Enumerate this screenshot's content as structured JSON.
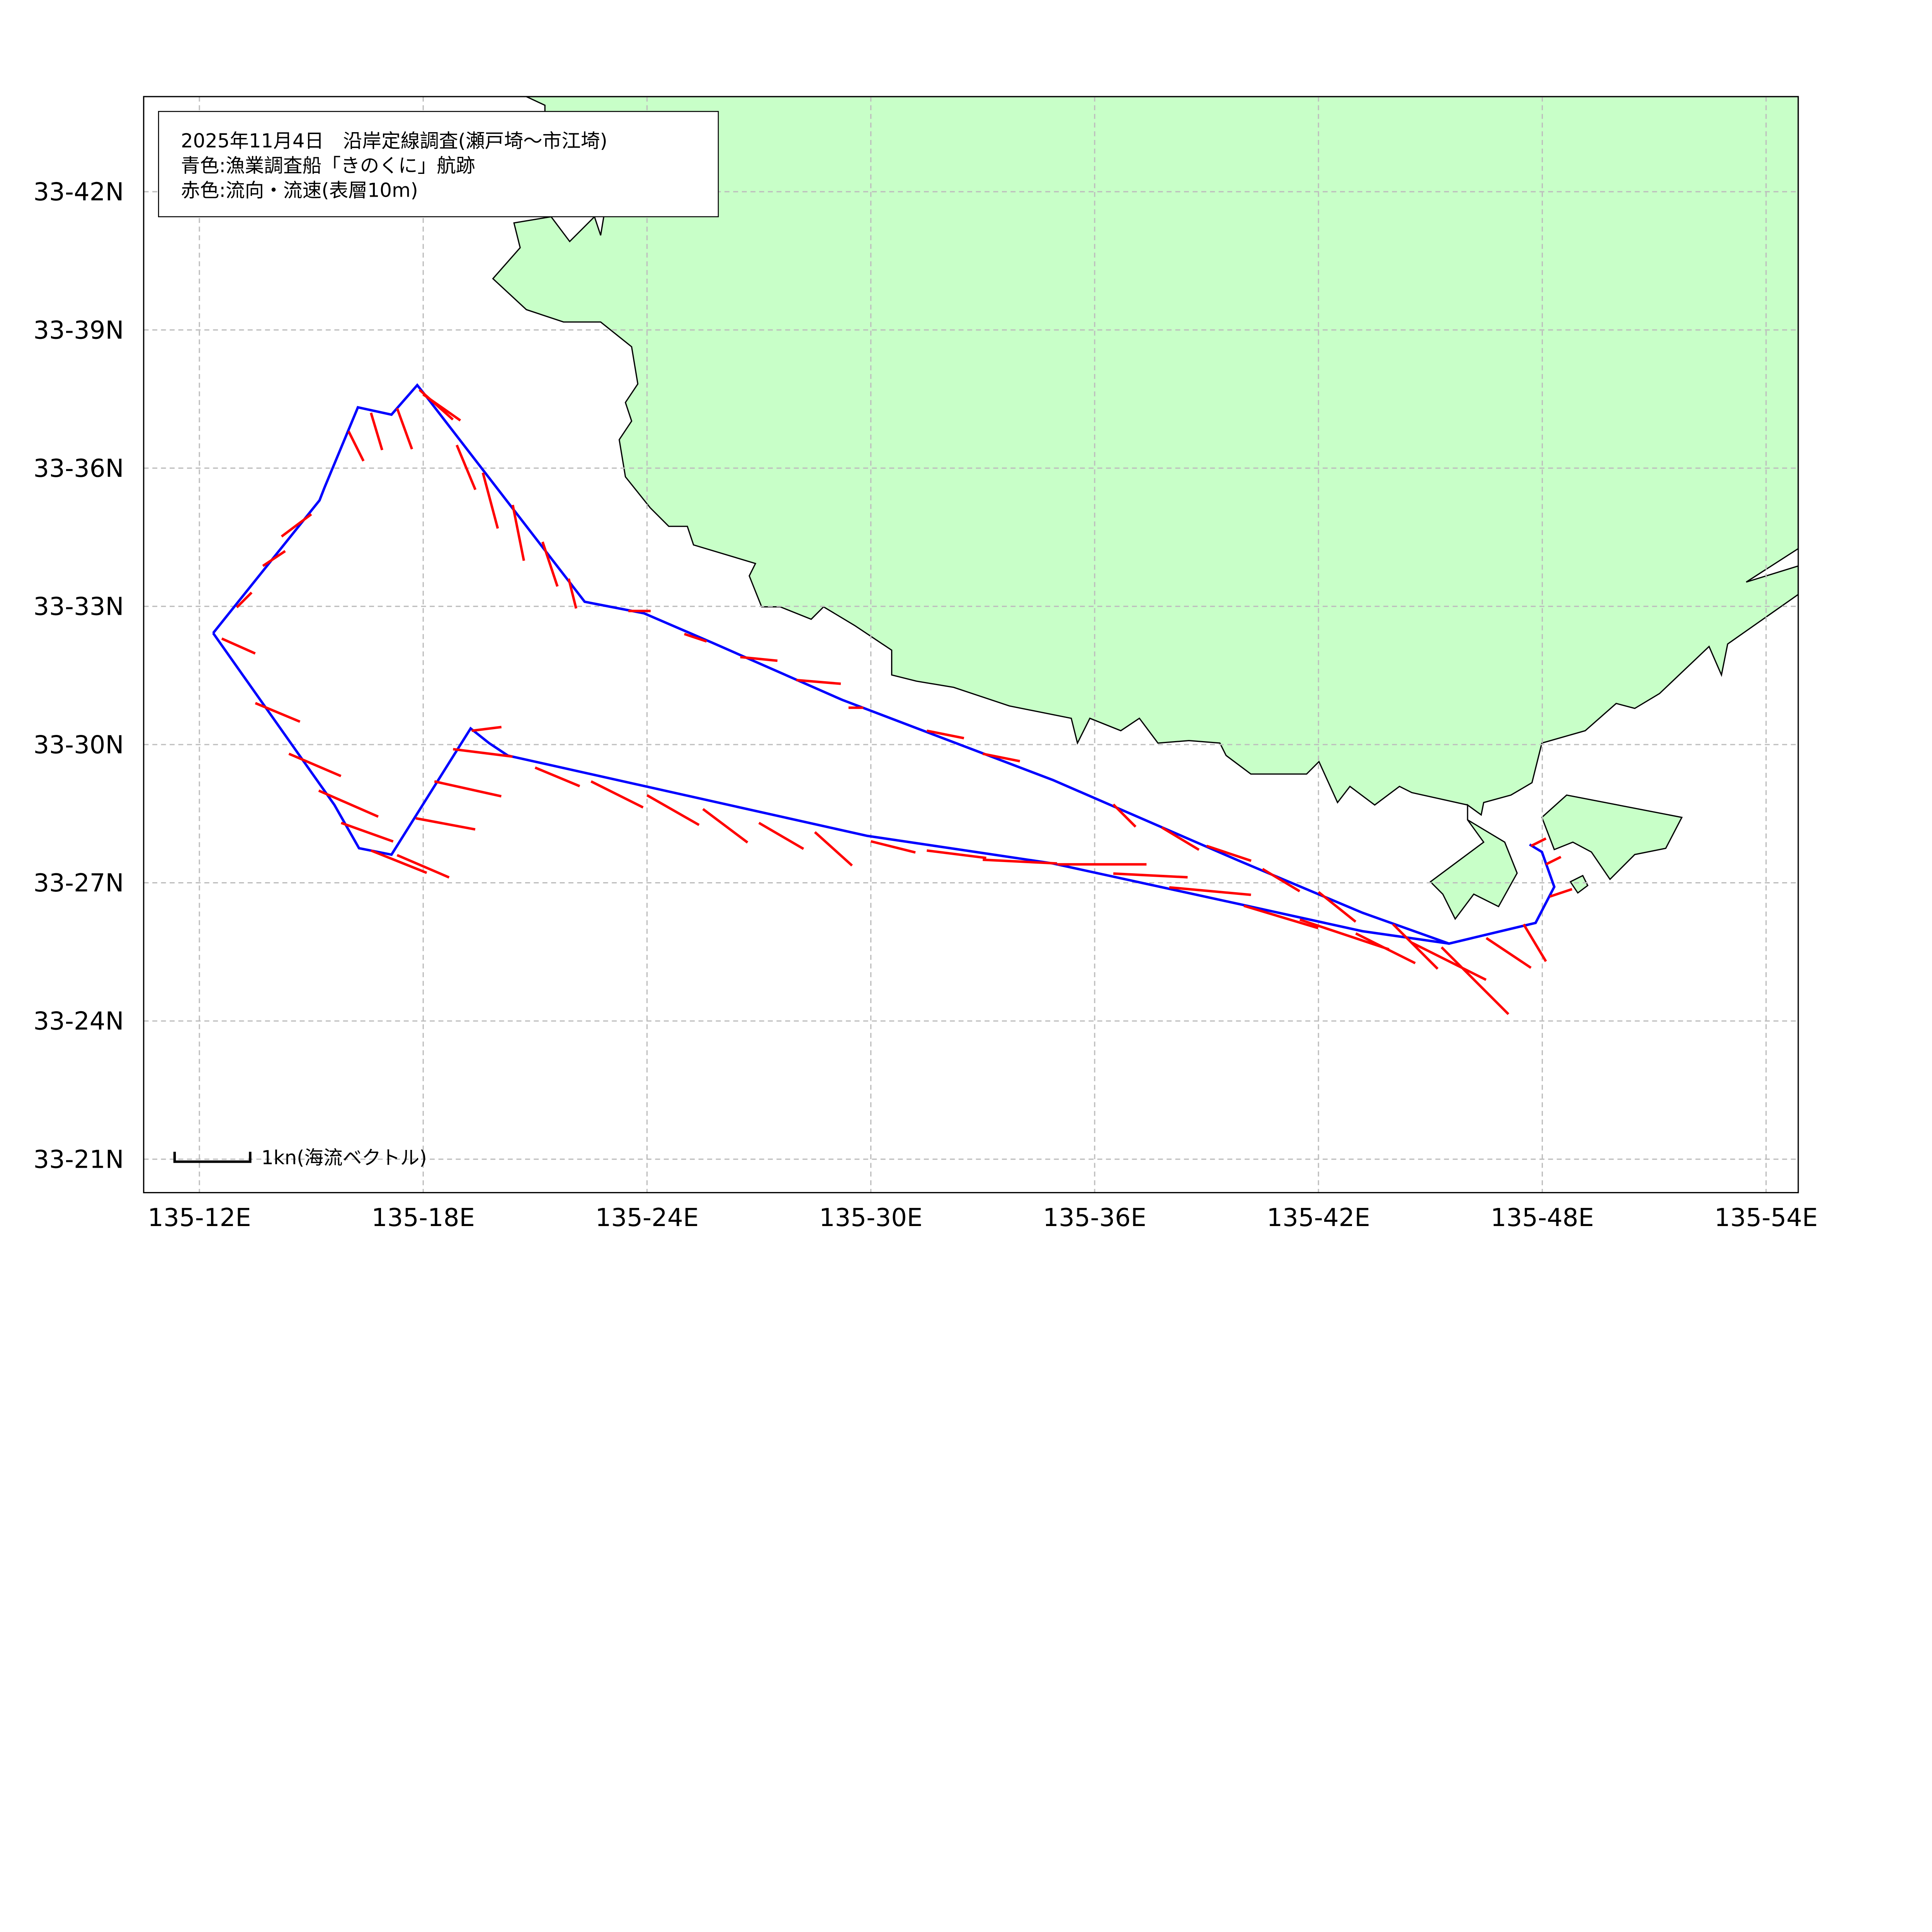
{
  "legend": {
    "line1": "2025年11月4日　沿岸定線調査(瀬戸埼～市江埼)",
    "line2": "青色:漁業調査船「きのくに」航跡",
    "line3": "赤色:流向・流速(表層10m)"
  },
  "scale_label": "1kn(海流ベクトル)",
  "colors": {
    "land": "#c8ffc8",
    "track": "#0000ff",
    "vector": "#ff0000",
    "grid": "#bdbdbd"
  },
  "axes": {
    "lon_ticks": [
      {
        "min": 12,
        "label": "135-12E"
      },
      {
        "min": 18,
        "label": "135-18E"
      },
      {
        "min": 24,
        "label": "135-24E"
      },
      {
        "min": 30,
        "label": "135-30E"
      },
      {
        "min": 36,
        "label": "135-36E"
      },
      {
        "min": 42,
        "label": "135-42E"
      },
      {
        "min": 48,
        "label": "135-48E"
      },
      {
        "min": 54,
        "label": "135-54E"
      }
    ],
    "lat_ticks": [
      {
        "min": 42,
        "label": "33-42N"
      },
      {
        "min": 39,
        "label": "33-39N"
      },
      {
        "min": 36,
        "label": "33-36N"
      },
      {
        "min": 33,
        "label": "33-33N"
      },
      {
        "min": 30,
        "label": "33-30N"
      },
      {
        "min": 27,
        "label": "33-27N"
      },
      {
        "min": 24,
        "label": "33-24N"
      },
      {
        "min": 21,
        "label": "33-21N"
      }
    ]
  },
  "chart_data": {
    "type": "map",
    "units": "track in arc-minutes past 135°E / 33°N; vectors u,v in knots",
    "lon_range_min": [
      10.5,
      54.9
    ],
    "lat_range_min": [
      20.3,
      44.0
    ],
    "track_upper": [
      [
        12.37,
        32.42
      ],
      [
        15.22,
        35.3
      ],
      [
        15.35,
        35.57
      ],
      [
        16.25,
        37.32
      ],
      [
        17.15,
        37.16
      ],
      [
        17.84,
        37.8
      ],
      [
        18.08,
        37.56
      ],
      [
        22.33,
        33.1
      ],
      [
        23.92,
        32.85
      ],
      [
        25.75,
        32.21
      ],
      [
        29.23,
        30.97
      ],
      [
        34.88,
        29.23
      ],
      [
        39.86,
        27.48
      ],
      [
        43.18,
        26.35
      ],
      [
        45.5,
        25.68
      ],
      [
        47.82,
        26.13
      ],
      [
        48.32,
        26.91
      ],
      [
        47.99,
        27.67
      ],
      [
        47.66,
        27.83
      ]
    ],
    "track_lower": [
      [
        12.37,
        32.42
      ],
      [
        15.62,
        28.69
      ],
      [
        16.28,
        27.75
      ],
      [
        17.15,
        27.61
      ],
      [
        19.27,
        30.35
      ],
      [
        19.77,
        30.03
      ],
      [
        20.27,
        29.76
      ],
      [
        29.9,
        28.02
      ],
      [
        34.88,
        27.42
      ],
      [
        39.86,
        26.54
      ],
      [
        43.18,
        25.95
      ],
      [
        45.5,
        25.68
      ]
    ],
    "vectors": [
      [
        16.6,
        37.2,
        0.15,
        -0.5
      ],
      [
        17.3,
        37.3,
        0.2,
        -0.55
      ],
      [
        16.0,
        36.8,
        0.2,
        -0.4
      ],
      [
        17.9,
        37.7,
        0.45,
        -0.4
      ],
      [
        18.0,
        37.6,
        0.5,
        -0.35
      ],
      [
        18.9,
        36.5,
        0.25,
        -0.6
      ],
      [
        19.6,
        35.9,
        0.2,
        -0.75
      ],
      [
        20.4,
        35.2,
        0.15,
        -0.75
      ],
      [
        21.2,
        34.4,
        0.2,
        -0.6
      ],
      [
        21.9,
        33.6,
        0.1,
        -0.4
      ],
      [
        15.0,
        35.0,
        -0.4,
        -0.3
      ],
      [
        14.3,
        34.2,
        -0.3,
        -0.2
      ],
      [
        13.4,
        33.3,
        -0.2,
        -0.2
      ],
      [
        12.6,
        32.3,
        0.45,
        -0.2
      ],
      [
        13.5,
        30.9,
        0.6,
        -0.25
      ],
      [
        14.4,
        29.8,
        0.7,
        -0.3
      ],
      [
        15.2,
        29.0,
        0.8,
        -0.35
      ],
      [
        15.8,
        28.3,
        0.7,
        -0.25
      ],
      [
        16.6,
        27.7,
        0.75,
        -0.3
      ],
      [
        17.3,
        27.6,
        0.7,
        -0.3
      ],
      [
        17.8,
        28.4,
        0.8,
        -0.15
      ],
      [
        18.3,
        29.2,
        0.9,
        -0.2
      ],
      [
        18.8,
        29.9,
        0.8,
        -0.1
      ],
      [
        19.3,
        30.3,
        0.4,
        0.05
      ],
      [
        21.0,
        29.5,
        0.6,
        -0.25
      ],
      [
        22.5,
        29.2,
        0.7,
        -0.35
      ],
      [
        24.0,
        28.9,
        0.7,
        -0.4
      ],
      [
        25.5,
        28.6,
        0.6,
        -0.45
      ],
      [
        27.0,
        28.3,
        0.6,
        -0.35
      ],
      [
        28.5,
        28.1,
        0.5,
        -0.45
      ],
      [
        30.0,
        27.9,
        0.6,
        -0.15
      ],
      [
        31.5,
        27.7,
        0.8,
        -0.1
      ],
      [
        33.0,
        27.5,
        1.0,
        -0.05
      ],
      [
        35.0,
        27.4,
        1.2,
        0.0
      ],
      [
        36.5,
        27.2,
        1.0,
        -0.05
      ],
      [
        38.0,
        26.9,
        1.1,
        -0.1
      ],
      [
        40.0,
        26.5,
        1.0,
        -0.3
      ],
      [
        41.5,
        26.2,
        1.2,
        -0.4
      ],
      [
        43.0,
        25.9,
        0.8,
        -0.4
      ],
      [
        44.5,
        25.7,
        1.0,
        -0.5
      ],
      [
        45.3,
        25.6,
        0.9,
        -0.9
      ],
      [
        23.5,
        32.9,
        0.3,
        0.0
      ],
      [
        25.0,
        32.4,
        0.3,
        -0.1
      ],
      [
        26.5,
        31.9,
        0.5,
        -0.05
      ],
      [
        28.0,
        31.4,
        0.6,
        -0.05
      ],
      [
        29.8,
        30.8,
        -0.2,
        0.0
      ],
      [
        31.5,
        30.3,
        0.5,
        -0.1
      ],
      [
        33.0,
        29.8,
        0.5,
        -0.1
      ],
      [
        36.5,
        28.7,
        0.3,
        -0.3
      ],
      [
        37.8,
        28.2,
        0.5,
        -0.3
      ],
      [
        39.0,
        27.8,
        0.6,
        -0.2
      ],
      [
        40.5,
        27.3,
        0.5,
        -0.3
      ],
      [
        42.0,
        26.8,
        0.5,
        -0.4
      ],
      [
        44.0,
        26.1,
        0.6,
        -0.6
      ],
      [
        46.5,
        25.8,
        0.6,
        -0.4
      ],
      [
        47.5,
        26.1,
        0.3,
        -0.5
      ],
      [
        48.2,
        26.7,
        0.3,
        0.1
      ],
      [
        48.1,
        27.4,
        0.2,
        0.1
      ],
      [
        47.7,
        27.8,
        0.2,
        0.1
      ]
    ]
  }
}
